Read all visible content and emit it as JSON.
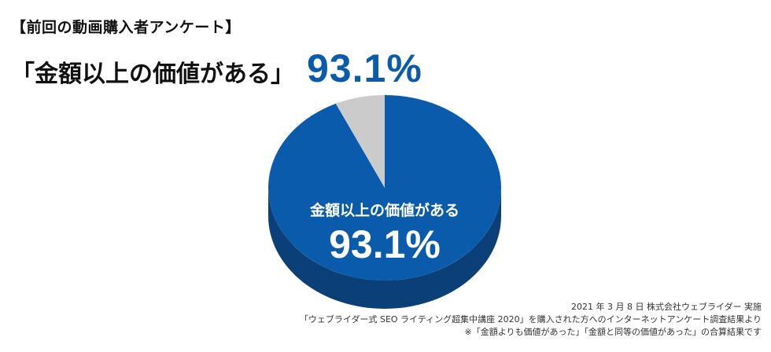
{
  "survey_label": "【前回の動画購入者アンケート】",
  "headline": {
    "text": "「金額以上の価値がある」",
    "percent": "93.1%"
  },
  "chart_data": {
    "type": "pie",
    "categories": [
      "金額以上の価値がある",
      ""
    ],
    "values": [
      93.1,
      6.9
    ],
    "colors": [
      "#0a5bab",
      "#cbcbcb"
    ],
    "side_colors": [
      "#0b3f78",
      "#999999"
    ],
    "labels": {
      "slice_label": "金額以上の価値がある",
      "slice_value": "93.1%"
    },
    "style": "3d"
  },
  "source": {
    "line1": "2021 年 3 月 8 日 株式会社ウェブライダー 実施",
    "line2": "「ウェブライダー式 SEO ライティング超集中講座 2020」を購入された方へのインターネットアンケート調査結果より",
    "line3": "※「金額よりも価値があった」「金額と同等の価値があった」の合算結果です"
  }
}
